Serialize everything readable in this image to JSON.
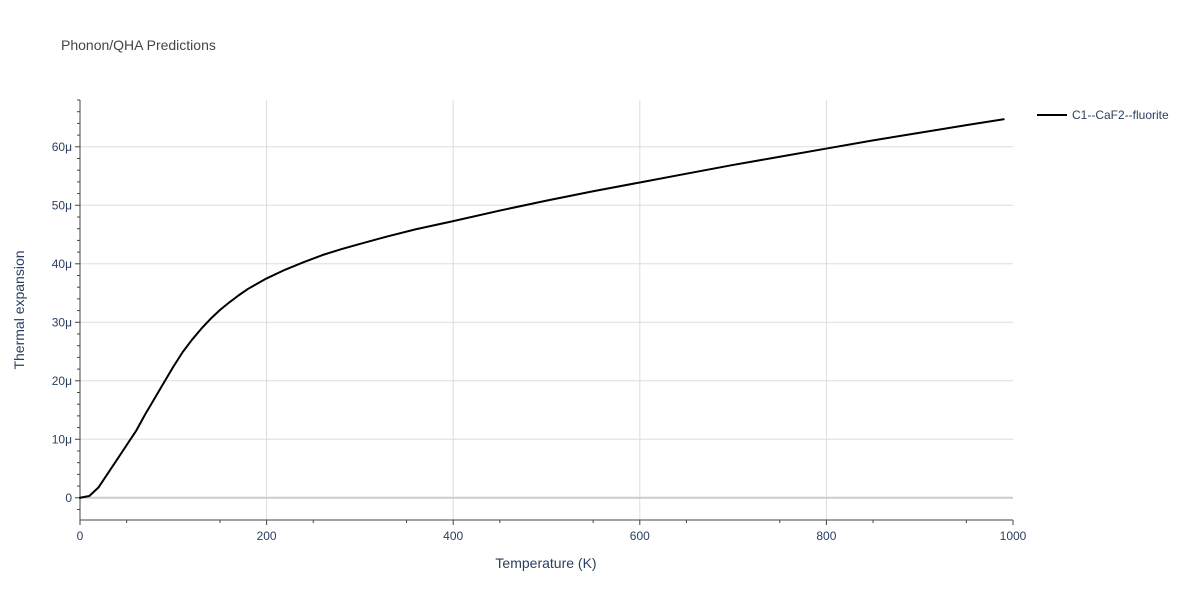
{
  "chart_data": {
    "type": "line",
    "title": "Phonon/QHA Predictions",
    "xlabel": "Temperature (K)",
    "ylabel": "Thermal expansion",
    "xlim": [
      0,
      1000
    ],
    "ylim": [
      -3.8e-06,
      6.8e-05
    ],
    "x_ticks": [
      0,
      200,
      400,
      600,
      800,
      1000
    ],
    "x_tick_labels": [
      "0",
      "200",
      "400",
      "600",
      "800",
      "1000"
    ],
    "y_ticks": [
      0,
      1e-05,
      2e-05,
      3e-05,
      4e-05,
      5e-05,
      6e-05
    ],
    "y_tick_labels": [
      "0",
      "10μ",
      "20μ",
      "30μ",
      "40μ",
      "50μ",
      "60μ"
    ],
    "grid": true,
    "legend_position": "top-right",
    "colors": {
      "series": "#000000",
      "grid": "#dddddd",
      "zeroline": "#cccccc",
      "text": "#2a3f5f",
      "title": "#444444"
    },
    "series": [
      {
        "name": "C1--CaF2--fluorite",
        "x": [
          0,
          10,
          20,
          30,
          40,
          50,
          60,
          70,
          80,
          90,
          100,
          110,
          120,
          130,
          140,
          150,
          160,
          170,
          180,
          190,
          200,
          220,
          240,
          260,
          280,
          300,
          330,
          360,
          400,
          450,
          500,
          550,
          600,
          650,
          700,
          750,
          800,
          850,
          900,
          950,
          990
        ],
        "y": [
          0,
          3e-07,
          1.8e-06,
          4.2e-06,
          6.6e-06,
          9e-06,
          1.14e-05,
          1.43e-05,
          1.7e-05,
          1.97e-05,
          2.24e-05,
          2.49e-05,
          2.7e-05,
          2.89e-05,
          3.06e-05,
          3.21e-05,
          3.34e-05,
          3.46e-05,
          3.57e-05,
          3.66e-05,
          3.75e-05,
          3.9e-05,
          4.03e-05,
          4.15e-05,
          4.25e-05,
          4.34e-05,
          4.47e-05,
          4.59e-05,
          4.73e-05,
          4.91e-05,
          5.08e-05,
          5.24e-05,
          5.39e-05,
          5.54e-05,
          5.69e-05,
          5.83e-05,
          5.97e-05,
          6.11e-05,
          6.24e-05,
          6.37e-05,
          6.47e-05
        ]
      }
    ]
  }
}
